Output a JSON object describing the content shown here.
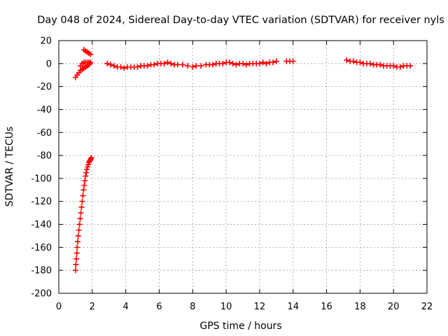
{
  "chart_data": {
    "type": "scatter",
    "title": "Day 048 of 2024, Sidereal Day-to-day VTEC variation (SDTVAR) for receiver nyls",
    "xlabel": "GPS time / hours",
    "ylabel": "SDTVAR / TECUs",
    "xlim": [
      0,
      22
    ],
    "ylim": [
      -200,
      20
    ],
    "xticks": [
      0,
      2,
      4,
      6,
      8,
      10,
      12,
      14,
      16,
      18,
      20,
      22
    ],
    "yticks": [
      -200,
      -180,
      -160,
      -140,
      -120,
      -100,
      -80,
      -60,
      -40,
      -20,
      0,
      20
    ],
    "grid": true,
    "legend": "none",
    "marker": "plus",
    "color": "#ff0000",
    "series": [
      {
        "x": [
          1.0,
          1.02,
          1.05,
          1.08,
          1.1,
          1.13,
          1.16,
          1.2,
          1.24,
          1.28,
          1.32,
          1.36,
          1.4,
          1.44,
          1.48,
          1.52,
          1.56,
          1.6,
          1.64,
          1.68,
          1.72,
          1.76,
          1.8,
          1.84,
          1.88,
          1.92,
          1.95
        ],
        "y": [
          -180,
          -175,
          -170,
          -165,
          -160,
          -155,
          -150,
          -145,
          -140,
          -135,
          -130,
          -125,
          -120,
          -115,
          -110,
          -106,
          -102,
          -98,
          -95,
          -92,
          -90,
          -88,
          -86,
          -85,
          -84,
          -83,
          -82
        ]
      },
      {
        "x": [
          1.0,
          1.1,
          1.2,
          1.3,
          1.4,
          1.5,
          1.6,
          1.7,
          1.8,
          1.85
        ],
        "y": [
          -12,
          -10,
          -8,
          -6,
          -5,
          -4,
          -3,
          -2,
          -1,
          0
        ]
      },
      {
        "x": [
          1.3,
          1.4,
          1.5,
          1.6,
          1.7,
          1.8,
          1.9,
          1.5,
          1.6,
          1.7,
          1.8,
          1.9
        ],
        "y": [
          -2,
          0,
          1,
          1,
          1,
          1,
          1,
          12,
          11,
          10,
          9,
          8
        ]
      },
      {
        "x": [
          2.9,
          3.1,
          3.3,
          3.5,
          3.7,
          3.9,
          4.1,
          4.3,
          4.5,
          4.7,
          4.9,
          5.1,
          5.3,
          5.5,
          5.7,
          5.9,
          6.1,
          6.3,
          6.5,
          6.7,
          6.9,
          7.1,
          7.4,
          7.7,
          8.0,
          8.2,
          8.5,
          8.8,
          9.0,
          9.2,
          9.4,
          9.6,
          9.8,
          10.0,
          10.2,
          10.4,
          10.6,
          10.8,
          11.0,
          11.2,
          11.4,
          11.6,
          11.8,
          12.0,
          12.2,
          12.4,
          12.6,
          12.8,
          13.0,
          13.6,
          13.8,
          14.0
        ],
        "y": [
          0,
          -1,
          -2,
          -3,
          -3,
          -4,
          -3,
          -3,
          -3,
          -3,
          -2,
          -2,
          -2,
          -1,
          -1,
          0,
          0,
          0,
          1,
          0,
          -1,
          -1,
          -1,
          -2,
          -3,
          -2,
          -2,
          -1,
          -1,
          -1,
          0,
          0,
          0,
          1,
          1,
          0,
          -1,
          0,
          0,
          -1,
          0,
          0,
          0,
          0,
          1,
          0,
          1,
          1,
          2,
          2,
          2,
          2
        ]
      },
      {
        "x": [
          17.2,
          17.4,
          17.6,
          17.8,
          18.0,
          18.2,
          18.4,
          18.6,
          18.8,
          19.0,
          19.2,
          19.4,
          19.6,
          19.8,
          20.0,
          20.2,
          20.4,
          20.6,
          20.8,
          21.0
        ],
        "y": [
          3,
          2,
          2,
          1,
          1,
          0,
          0,
          0,
          -1,
          -1,
          -1,
          -2,
          -2,
          -2,
          -2,
          -3,
          -3,
          -2,
          -2,
          -2
        ]
      }
    ]
  }
}
